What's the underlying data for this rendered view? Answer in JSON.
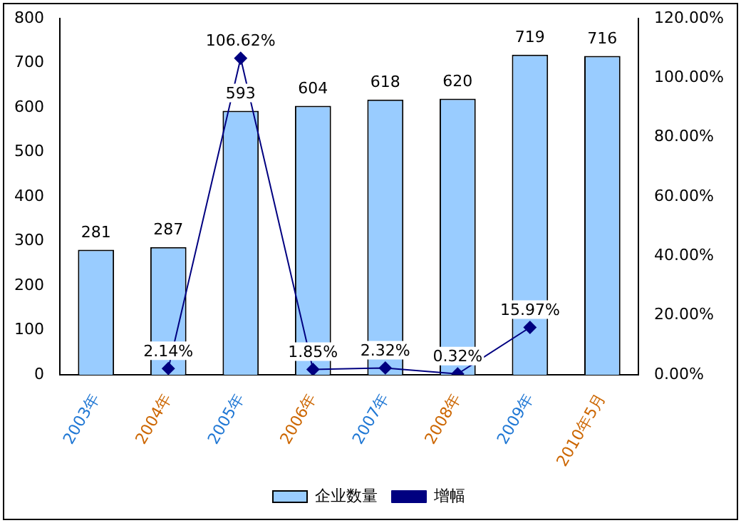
{
  "chart_data": {
    "type": "bar",
    "categories": [
      "2003年",
      "2004年",
      "2005年",
      "2006年",
      "2007年",
      "2008年",
      "2009年",
      "2010年5月"
    ],
    "series": [
      {
        "name": "企业数量",
        "color": "#99ccff",
        "values": [
          281,
          287,
          593,
          604,
          618,
          620,
          719,
          716
        ],
        "value_labels": [
          "281",
          "287",
          "593",
          "604",
          "618",
          "620",
          "719",
          "716"
        ]
      },
      {
        "name": "增幅",
        "type": "line",
        "axis": "y2",
        "color": "#000080",
        "marker": "diamond",
        "values": [
          null,
          2.14,
          106.62,
          1.85,
          2.32,
          0.32,
          15.97,
          null
        ],
        "value_labels": [
          null,
          "2.14%",
          "106.62%",
          "1.85%",
          "2.32%",
          "0.32%",
          "15.97%",
          null
        ]
      }
    ],
    "ylim": [
      0,
      800
    ],
    "yticks": [
      0,
      100,
      200,
      300,
      400,
      500,
      600,
      700,
      800
    ],
    "y2lim": [
      0,
      120
    ],
    "y2ticks": [
      {
        "value": 0,
        "label": "0.00%"
      },
      {
        "value": 20,
        "label": "20.00%"
      },
      {
        "value": 40,
        "label": "40.00%"
      },
      {
        "value": 60,
        "label": "60.00%"
      },
      {
        "value": 80,
        "label": "80.00%"
      },
      {
        "value": 100,
        "label": "100.00%"
      },
      {
        "value": 120,
        "label": "120.00%"
      }
    ],
    "grid": false,
    "legend": "bottom"
  }
}
